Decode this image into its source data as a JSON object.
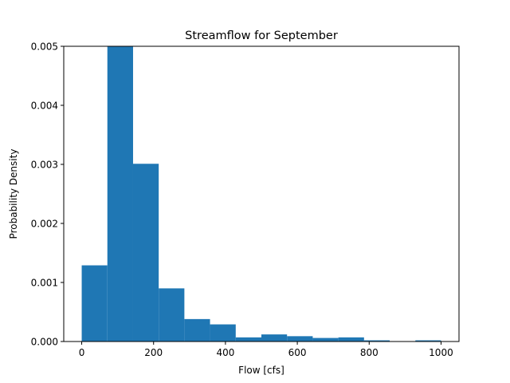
{
  "chart_data": {
    "type": "bar",
    "title": "Streamflow for September",
    "xlabel": "Flow [cfs]",
    "ylabel": "Probability Density",
    "xlim": [
      -50,
      1050
    ],
    "ylim": [
      0,
      0.005
    ],
    "xticks": [
      0,
      200,
      400,
      600,
      800,
      1000
    ],
    "xtick_labels": [
      "0",
      "200",
      "400",
      "600",
      "800",
      "1000"
    ],
    "yticks": [
      0.0,
      0.001,
      0.002,
      0.003,
      0.004,
      0.005
    ],
    "ytick_labels": [
      "0.000",
      "0.001",
      "0.002",
      "0.003",
      "0.004",
      "0.005"
    ],
    "grid": false,
    "bar_color": "#1f77b4",
    "bins": [
      {
        "x0": 0,
        "x1": 71.4,
        "value": 0.00129
      },
      {
        "x0": 71.4,
        "x1": 142.9,
        "value": 0.00505
      },
      {
        "x0": 142.9,
        "x1": 214.3,
        "value": 0.00301
      },
      {
        "x0": 214.3,
        "x1": 285.7,
        "value": 0.0009
      },
      {
        "x0": 285.7,
        "x1": 357.1,
        "value": 0.00038
      },
      {
        "x0": 357.1,
        "x1": 428.6,
        "value": 0.00029
      },
      {
        "x0": 428.6,
        "x1": 500.0,
        "value": 7e-05
      },
      {
        "x0": 500.0,
        "x1": 571.4,
        "value": 0.00012
      },
      {
        "x0": 571.4,
        "x1": 642.9,
        "value": 9e-05
      },
      {
        "x0": 642.9,
        "x1": 714.3,
        "value": 6e-05
      },
      {
        "x0": 714.3,
        "x1": 785.7,
        "value": 7e-05
      },
      {
        "x0": 785.7,
        "x1": 857.1,
        "value": 2e-05
      },
      {
        "x0": 857.1,
        "x1": 928.6,
        "value": 0.0
      },
      {
        "x0": 928.6,
        "x1": 1000.0,
        "value": 2e-05
      }
    ]
  }
}
